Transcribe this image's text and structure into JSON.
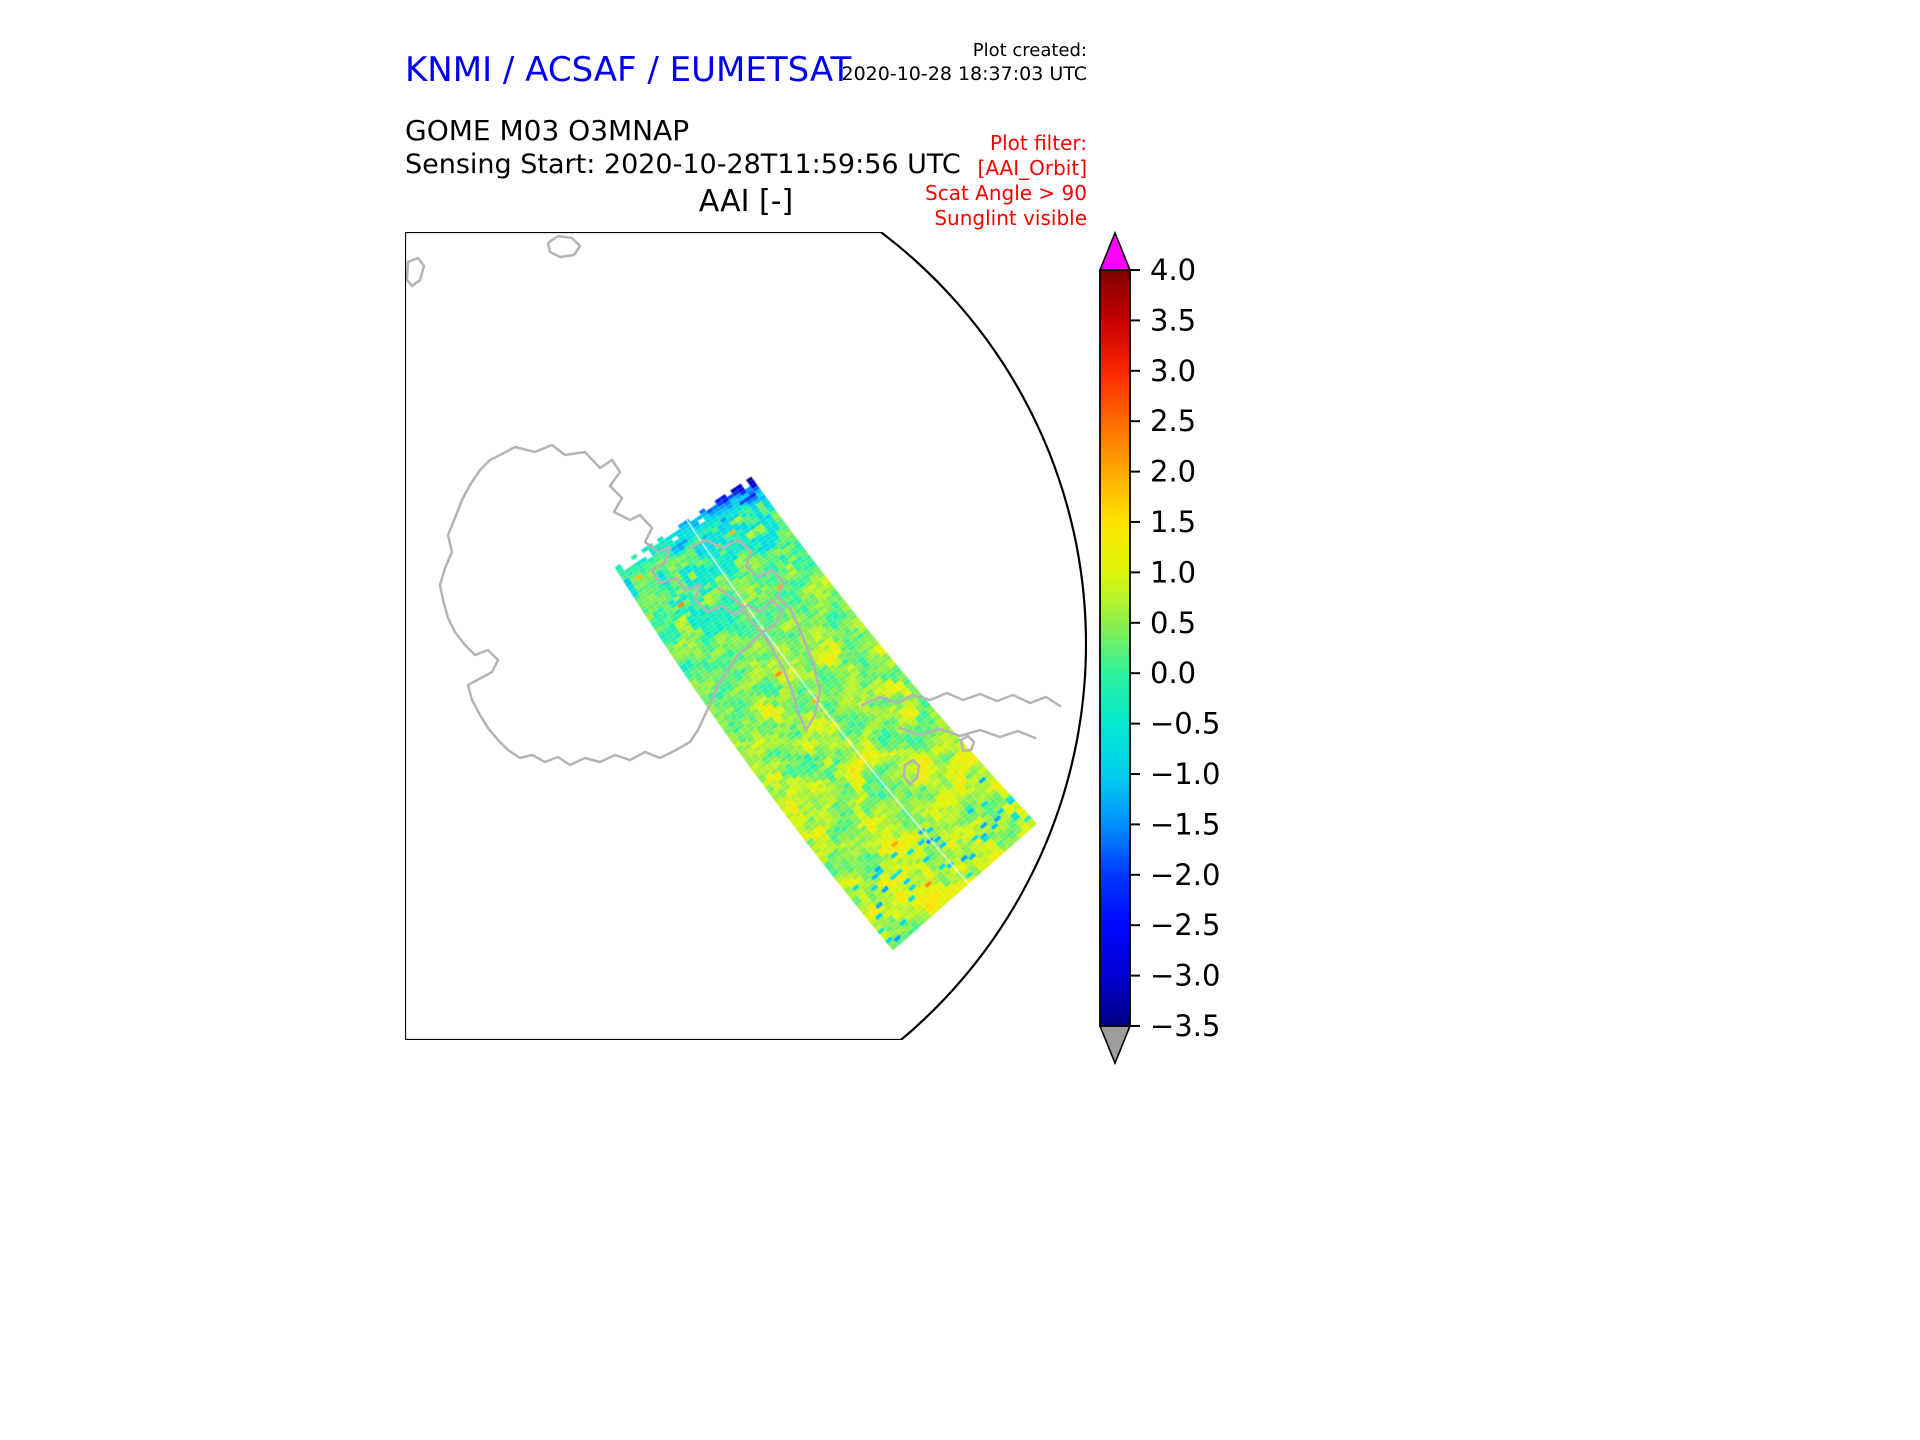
{
  "header": {
    "title": "KNMI / ACSAF / EUMETSAT",
    "title_color": "#0000EE",
    "created_label": "Plot created:",
    "created_value": "2020-10-28 18:37:03 UTC"
  },
  "subtitles": {
    "instrument": "GOME M03 O3MNAP",
    "sensing": "Sensing Start: 2020-10-28T11:59:56 UTC",
    "plot_title": "AAI [-]"
  },
  "filter": {
    "heading": "Plot filter:",
    "lines": [
      "[AAI_Orbit]",
      "Scat Angle > 90",
      "Sunglint visible"
    ],
    "color": "#FF0000"
  },
  "map": {
    "coastline_color": "#b4b4b4",
    "border_color": "#000000"
  },
  "colorbar": {
    "labels": [
      "4.0",
      "3.5",
      "3.0",
      "2.5",
      "2.0",
      "1.5",
      "1.0",
      "0.5",
      "0.0",
      "−0.5",
      "−1.0",
      "−1.5",
      "−2.0",
      "−2.5",
      "−3.0",
      "−3.5"
    ],
    "vmin": -3.5,
    "vmax": 4.0,
    "tick_step": 0.5,
    "over_color": "#FF00FF",
    "under_color": "#9E9E9E"
  },
  "chart_data": {
    "type": "heatmap",
    "title": "AAI [-]",
    "subtitle": "GOME-2 Metop-A (M03) O3MNAP orbit swath, Absorbing Aerosol Index, polar stereographic view over Antarctica",
    "colorbar_range": [
      -3.5,
      4.0
    ],
    "colorbar_tick_step": 0.5,
    "colorbar_tick_values": [
      4.0,
      3.5,
      3.0,
      2.5,
      2.0,
      1.5,
      1.0,
      0.5,
      0.0,
      -0.5,
      -1.0,
      -1.5,
      -2.0,
      -2.5,
      -3.0,
      -3.5
    ],
    "value_summary": "Diagonal satellite swath crossing the map from upper middle to lower right; values mostly between -1.0 and +1.0 (cyan/green/yellow speckle); dark navy patches (-2 to -3.5) at the swath start and wavy blue streaks in the upper third; scattered yellow patches up to ~1.5 in the lower half; rare orange hot pixels ~2; thin white along-track seam near the swath centre",
    "colormap_stops": [
      [
        -3.5,
        "#000080"
      ],
      [
        -3.0,
        "#0000D0"
      ],
      [
        -2.5,
        "#0008FF"
      ],
      [
        -2.0,
        "#0038FF"
      ],
      [
        -1.5,
        "#0090FF"
      ],
      [
        -1.0,
        "#00CFEF"
      ],
      [
        -0.5,
        "#06E8CF"
      ],
      [
        0.0,
        "#2EF29C"
      ],
      [
        0.5,
        "#8EEF4B"
      ],
      [
        1.0,
        "#DEF607"
      ],
      [
        1.5,
        "#FFE400"
      ],
      [
        2.0,
        "#FFA800"
      ],
      [
        2.5,
        "#FF6B00"
      ],
      [
        3.0,
        "#F92600"
      ],
      [
        3.5,
        "#C50000"
      ],
      [
        4.0,
        "#7F0000"
      ]
    ],
    "swath": {
      "p0": [
        278,
        290
      ],
      "p1": [
        403,
        477
      ],
      "p2": [
        560,
        655
      ],
      "halfwidth0": 82,
      "halfwidth1": 96,
      "rows": 118,
      "cols": 26
    }
  }
}
